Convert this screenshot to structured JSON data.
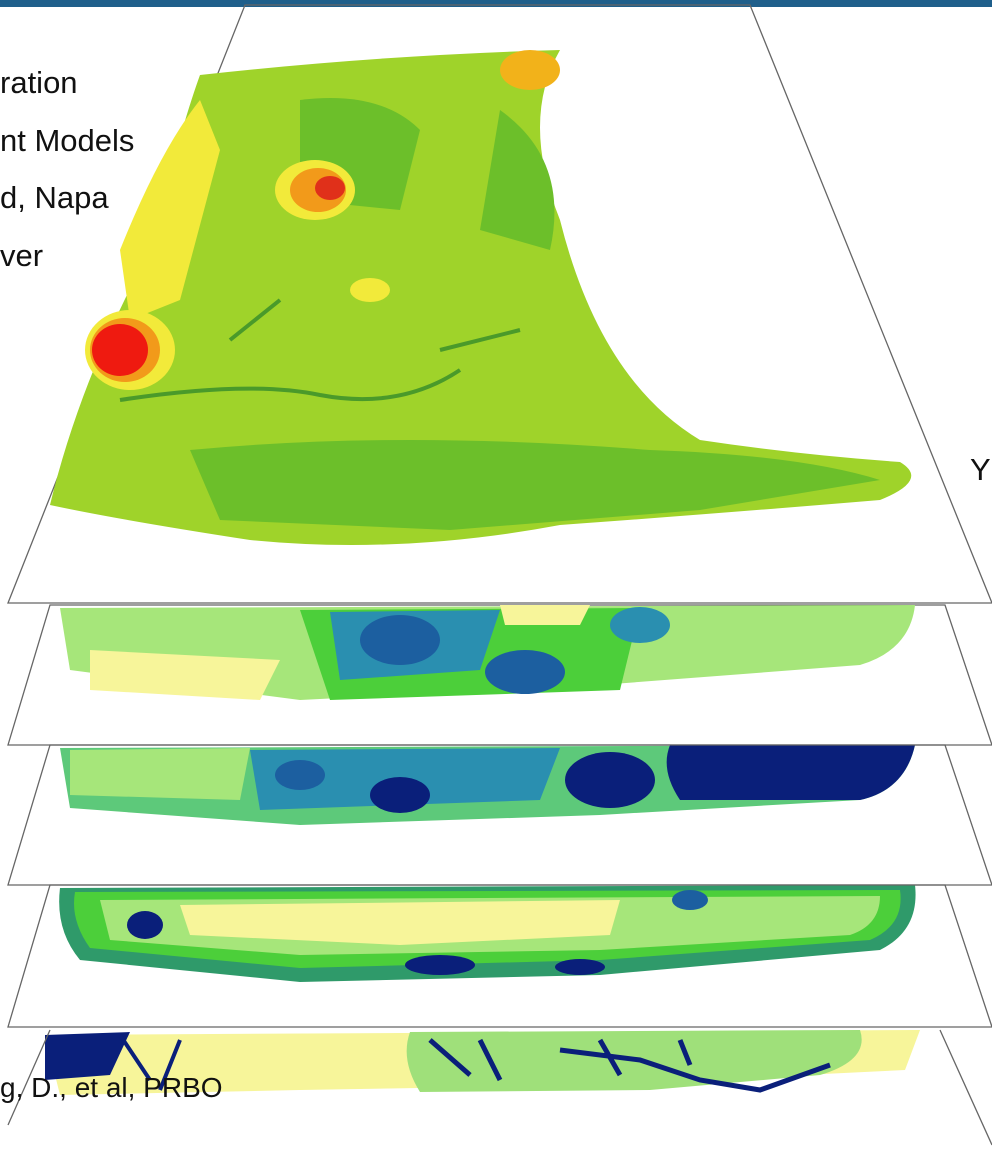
{
  "slide": {
    "left_text": [
      "ration",
      "nt Models",
      "d, Napa",
      "ver"
    ],
    "right_text": "Y",
    "credit": "g, D., et al, PRBO"
  }
}
